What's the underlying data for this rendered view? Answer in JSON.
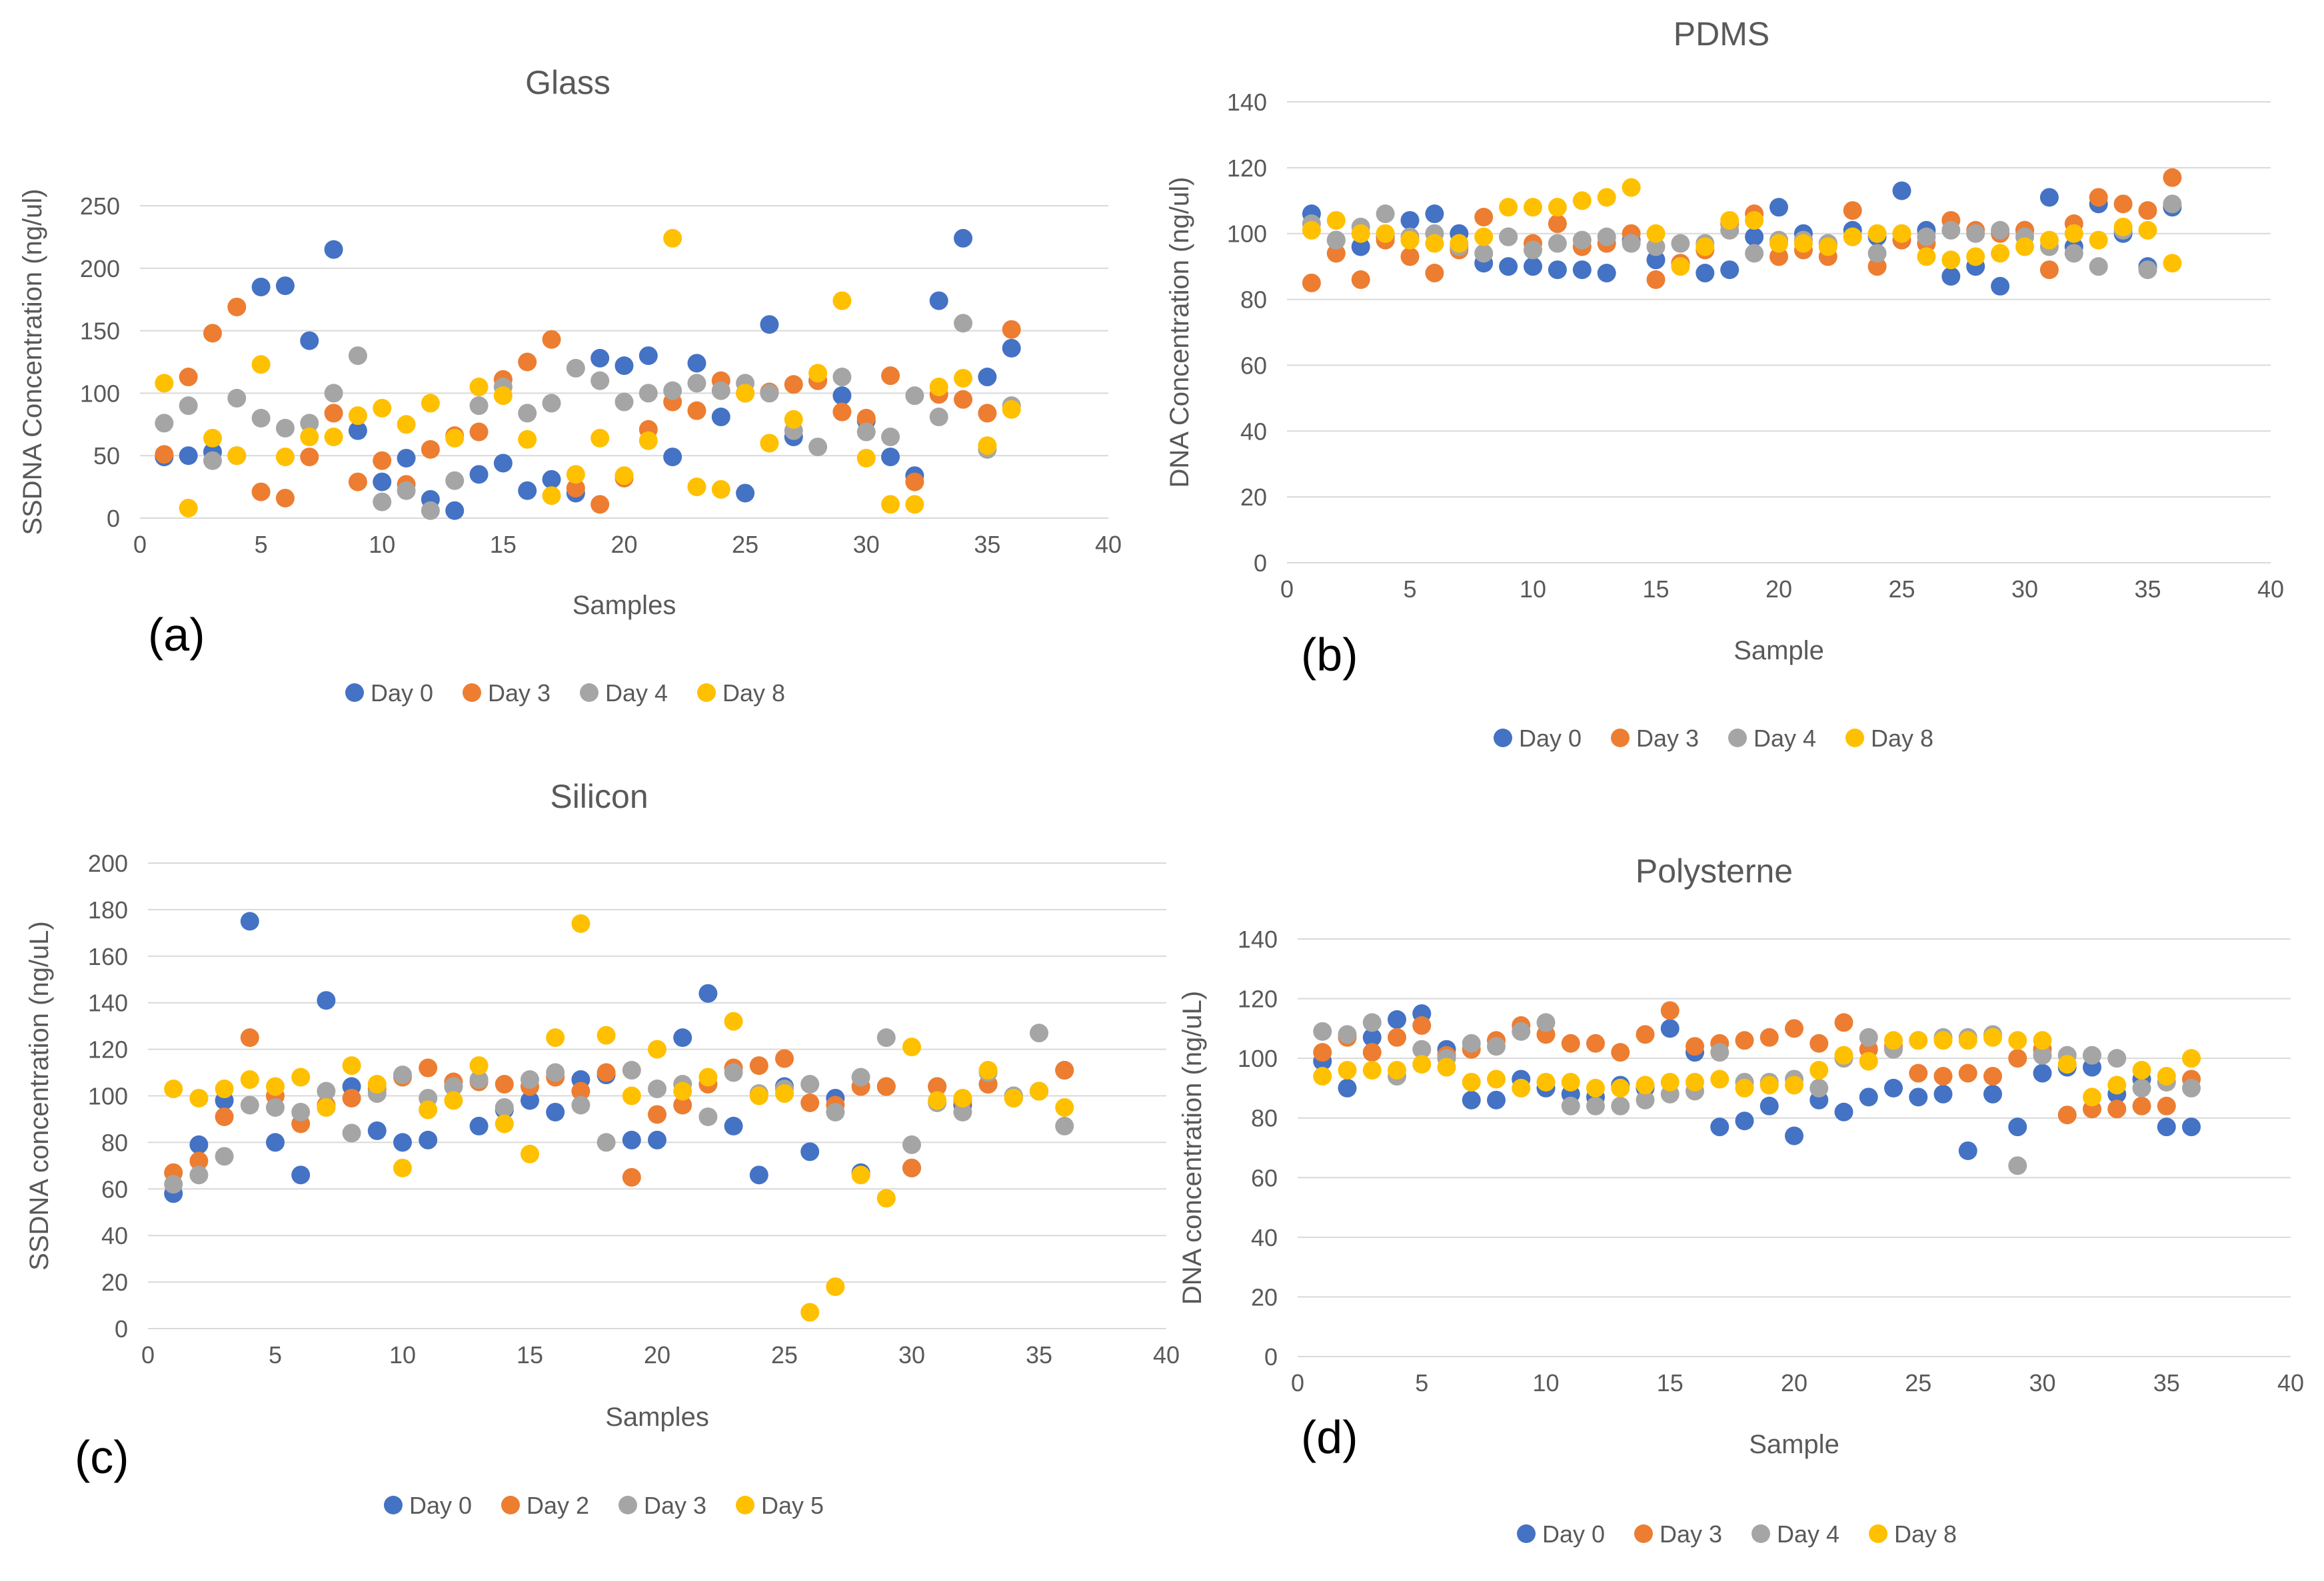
{
  "colors": {
    "blue": "#4472C4",
    "orange": "#ED7D31",
    "gray": "#A5A5A5",
    "yellow": "#FFC000"
  },
  "chart_data": [
    {
      "id": "a",
      "type": "scatter",
      "panel_label": "(a)",
      "title": "Glass",
      "xlabel": "Samples",
      "ylabel": "SSDNA Concentration (ng/ul)",
      "xlim": [
        0,
        40
      ],
      "ylim": [
        0,
        250
      ],
      "xticks": [
        0,
        5,
        10,
        15,
        20,
        25,
        30,
        35,
        40
      ],
      "yticks": [
        0,
        50,
        100,
        150,
        200,
        250
      ],
      "grid": true,
      "legend_position": "bottom",
      "series": [
        {
          "name": "Day 0",
          "color_key": "blue",
          "y": [
            49,
            50,
            53,
            50,
            185,
            186,
            142,
            215,
            70,
            29,
            48,
            15,
            6,
            35,
            44,
            22,
            31,
            20,
            128,
            122,
            130,
            49,
            124,
            81,
            20,
            155,
            65,
            110,
            98,
            78,
            49,
            34,
            174,
            224,
            113,
            136
          ]
        },
        {
          "name": "Day 3",
          "color_key": "orange",
          "y": [
            51,
            113,
            148,
            169,
            21,
            16,
            49,
            84,
            29,
            46,
            27,
            55,
            66,
            69,
            111,
            125,
            143,
            24,
            11,
            32,
            71,
            93,
            86,
            110,
            100,
            101,
            107,
            110,
            85,
            80,
            114,
            29,
            99,
            95,
            84,
            151
          ]
        },
        {
          "name": "Day 4",
          "color_key": "gray",
          "y": [
            76,
            90,
            46,
            96,
            80,
            72,
            76,
            100,
            130,
            13,
            22,
            6,
            30,
            90,
            105,
            84,
            92,
            120,
            110,
            93,
            100,
            102,
            108,
            102,
            108,
            100,
            70,
            57,
            113,
            69,
            65,
            98,
            81,
            156,
            55,
            90
          ]
        },
        {
          "name": "Day 8",
          "color_key": "yellow",
          "y": [
            108,
            8,
            64,
            50,
            123,
            49,
            65,
            65,
            82,
            88,
            75,
            92,
            64,
            105,
            98,
            63,
            18,
            35,
            64,
            34,
            62,
            224,
            25,
            23,
            100,
            60,
            79,
            116,
            174,
            48,
            11,
            11,
            105,
            112,
            58,
            87
          ]
        }
      ]
    },
    {
      "id": "b",
      "type": "scatter",
      "panel_label": "(b)",
      "title": "PDMS",
      "xlabel": "Sample",
      "ylabel": "DNA Concentration (ng/ul)",
      "xlim": [
        0,
        40
      ],
      "ylim": [
        0,
        140
      ],
      "xticks": [
        0,
        5,
        10,
        15,
        20,
        25,
        30,
        35,
        40
      ],
      "yticks": [
        0,
        20,
        40,
        60,
        80,
        100,
        120,
        140
      ],
      "grid": true,
      "legend_position": "bottom",
      "series": [
        {
          "name": "Day 0",
          "color_key": "blue",
          "y": [
            106,
            98,
            96,
            99,
            104,
            106,
            100,
            91,
            90,
            90,
            89,
            89,
            88,
            98,
            92,
            91,
            88,
            89,
            99,
            108,
            100,
            97,
            101,
            99,
            113,
            101,
            87,
            90,
            84,
            101,
            111,
            96,
            109,
            100,
            90,
            108
          ]
        },
        {
          "name": "Day 3",
          "color_key": "orange",
          "y": [
            85,
            94,
            86,
            98,
            93,
            88,
            95,
            105,
            99,
            97,
            103,
            96,
            97,
            100,
            86,
            91,
            95,
            103,
            106,
            93,
            95,
            93,
            107,
            90,
            98,
            97,
            104,
            101,
            100,
            101,
            89,
            103,
            111,
            109,
            107,
            117
          ]
        },
        {
          "name": "Day 4",
          "color_key": "gray",
          "y": [
            103,
            98,
            102,
            106,
            99,
            100,
            96,
            94,
            99,
            95,
            97,
            98,
            99,
            97,
            96,
            97,
            97,
            101,
            94,
            98,
            98,
            97,
            99,
            94,
            100,
            99,
            101,
            100,
            101,
            99,
            96,
            94,
            90,
            101,
            89,
            109
          ]
        },
        {
          "name": "Day 8",
          "color_key": "yellow",
          "y": [
            101,
            104,
            100,
            100,
            98,
            97,
            97,
            99,
            108,
            108,
            108,
            110,
            111,
            114,
            100,
            90,
            96,
            104,
            104,
            97,
            97,
            96,
            99,
            100,
            100,
            93,
            92,
            93,
            94,
            96,
            98,
            100,
            98,
            102,
            101,
            91
          ]
        }
      ]
    },
    {
      "id": "c",
      "type": "scatter",
      "panel_label": "(c)",
      "title": "Silicon",
      "xlabel": "Samples",
      "ylabel": "SSDNA concentration (ng/uL)",
      "xlim": [
        0,
        40
      ],
      "ylim": [
        0,
        200
      ],
      "xticks": [
        0,
        5,
        10,
        15,
        20,
        25,
        30,
        35,
        40
      ],
      "yticks": [
        0,
        20,
        40,
        60,
        80,
        100,
        120,
        140,
        160,
        180,
        200
      ],
      "grid": true,
      "legend_position": "bottom",
      "series": [
        {
          "name": "Day 0",
          "color_key": "blue",
          "y": [
            58,
            79,
            98,
            175,
            80,
            66,
            141,
            104,
            85,
            80,
            81,
            104,
            87,
            94,
            98,
            93,
            107,
            109,
            81,
            81,
            125,
            144,
            87,
            66,
            104,
            76,
            99,
            67,
            104,
            69,
            104,
            96,
            105,
            100,
            102,
            111
          ]
        },
        {
          "name": "Day 2",
          "color_key": "orange",
          "y": [
            67,
            72,
            91,
            125,
            100,
            88,
            96,
            99,
            103,
            108,
            112,
            106,
            106,
            105,
            104,
            108,
            102,
            110,
            65,
            92,
            96,
            105,
            112,
            113,
            116,
            97,
            96,
            104,
            104,
            69,
            104,
            98,
            105,
            99,
            102,
            111
          ]
        },
        {
          "name": "Day 3",
          "color_key": "gray",
          "y": [
            62,
            66,
            74,
            96,
            95,
            93,
            102,
            84,
            101,
            109,
            99,
            104,
            107,
            95,
            107,
            110,
            96,
            80,
            111,
            103,
            105,
            91,
            110,
            101,
            103,
            105,
            93,
            108,
            125,
            79,
            97,
            93,
            110,
            100,
            127,
            87
          ]
        },
        {
          "name": "Day 5",
          "color_key": "yellow",
          "y": [
            103,
            99,
            103,
            107,
            104,
            108,
            95,
            113,
            105,
            69,
            94,
            98,
            113,
            88,
            75,
            125,
            174,
            126,
            100,
            120,
            102,
            108,
            132,
            100,
            101,
            7,
            18,
            66,
            56,
            121,
            98,
            99,
            111,
            99,
            102,
            95
          ]
        }
      ]
    },
    {
      "id": "d",
      "type": "scatter",
      "panel_label": "(d)",
      "title": "Polysterne",
      "xlabel": "Sample",
      "ylabel": "DNA concentration (ng/uL)",
      "xlim": [
        0,
        40
      ],
      "ylim": [
        0,
        140
      ],
      "xticks": [
        0,
        5,
        10,
        15,
        20,
        25,
        30,
        35,
        40
      ],
      "yticks": [
        0,
        20,
        40,
        60,
        80,
        100,
        120,
        140
      ],
      "grid": true,
      "legend_position": "bottom",
      "series": [
        {
          "name": "Day 0",
          "color_key": "blue",
          "y": [
            99,
            90,
            107,
            113,
            115,
            103,
            86,
            86,
            93,
            90,
            88,
            87,
            91,
            90,
            110,
            102,
            77,
            79,
            84,
            74,
            86,
            82,
            87,
            90,
            87,
            88,
            69,
            88,
            77,
            95,
            97,
            97,
            88,
            93,
            77,
            77
          ]
        },
        {
          "name": "Day 3",
          "color_key": "orange",
          "y": [
            102,
            107,
            102,
            107,
            111,
            101,
            103,
            106,
            111,
            108,
            105,
            105,
            102,
            108,
            116,
            104,
            105,
            106,
            107,
            110,
            105,
            112,
            103,
            104,
            95,
            94,
            95,
            94,
            100,
            103,
            81,
            83,
            83,
            84,
            84,
            93
          ]
        },
        {
          "name": "Day 4",
          "color_key": "gray",
          "y": [
            109,
            108,
            112,
            94,
            103,
            100,
            105,
            104,
            109,
            112,
            84,
            84,
            84,
            86,
            88,
            89,
            102,
            92,
            92,
            93,
            90,
            100,
            107,
            103,
            106,
            107,
            107,
            108,
            64,
            101,
            101,
            101,
            100,
            90,
            92,
            90
          ]
        },
        {
          "name": "Day 8",
          "color_key": "yellow",
          "y": [
            94,
            96,
            96,
            96,
            98,
            97,
            92,
            93,
            90,
            92,
            92,
            90,
            90,
            91,
            92,
            92,
            93,
            90,
            91,
            91,
            96,
            101,
            99,
            106,
            106,
            106,
            106,
            107,
            106,
            106,
            98,
            87,
            91,
            96,
            94,
            100
          ]
        }
      ]
    }
  ]
}
